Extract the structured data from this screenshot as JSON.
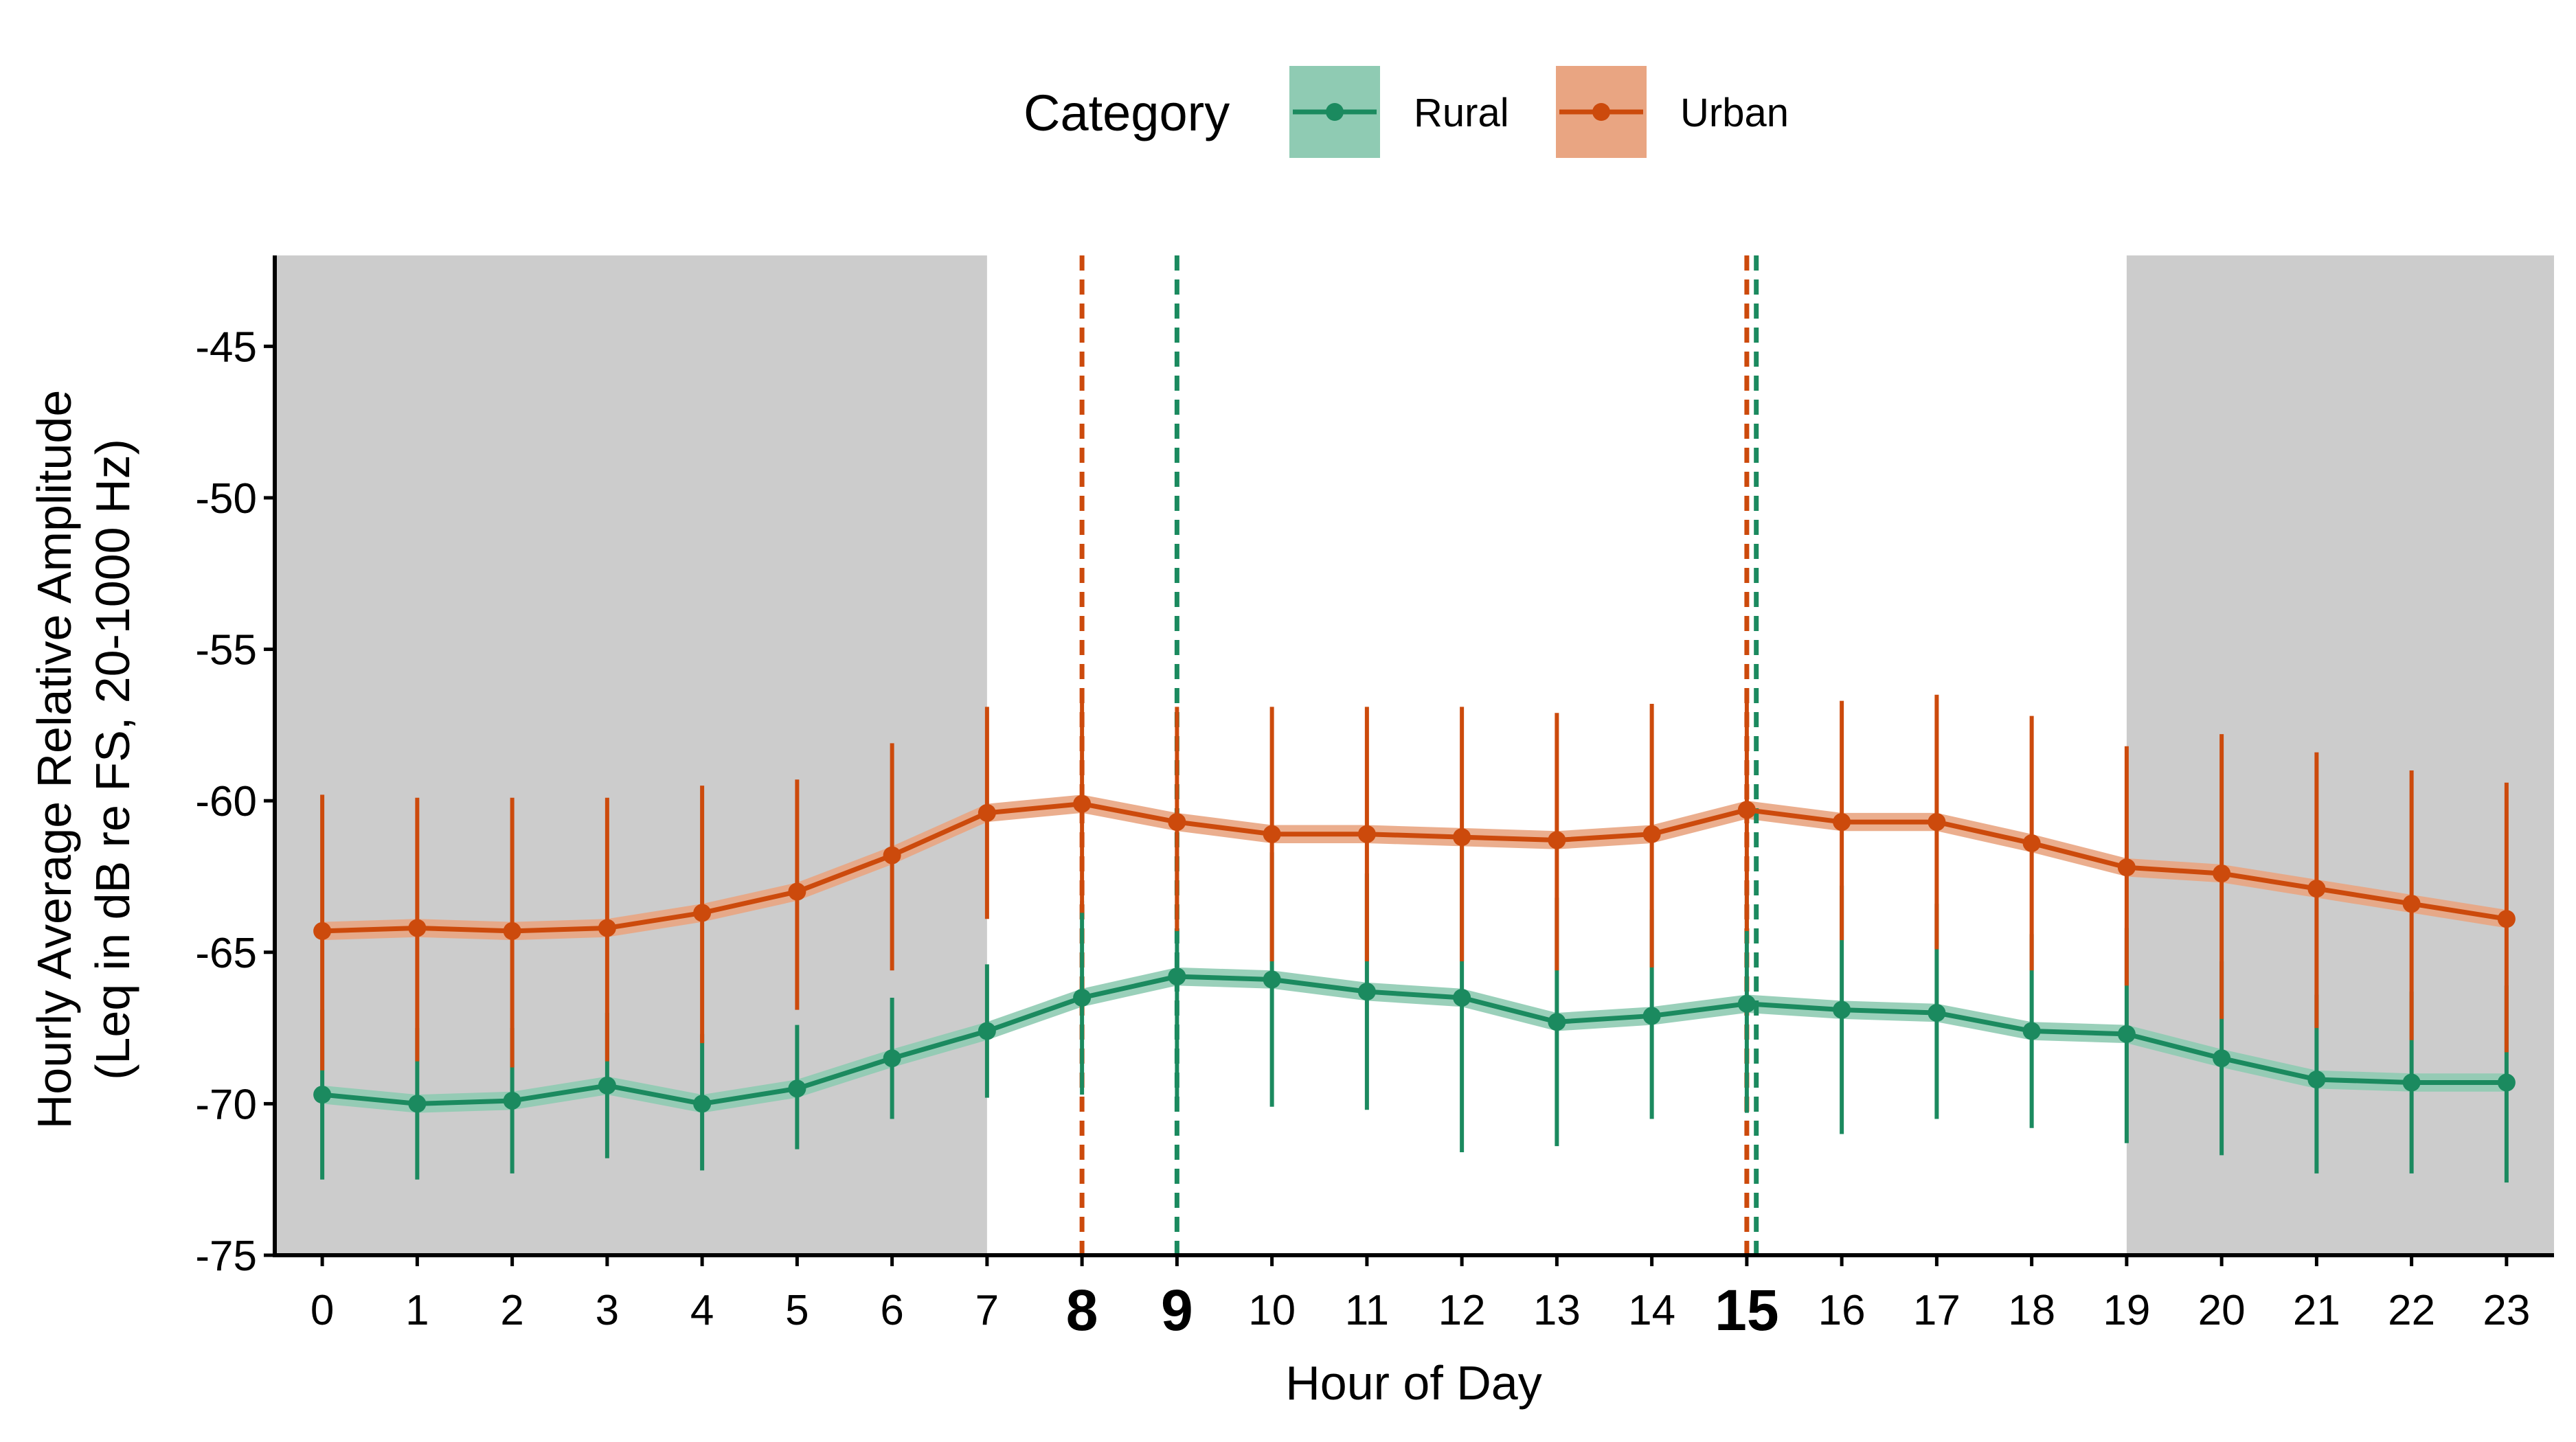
{
  "chart_data": {
    "type": "line",
    "title": "",
    "xlabel": "Hour of Day",
    "ylabel_lines": [
      "Hourly Average Relative Amplitude",
      "(Leq in dB re FS, 20-1000 Hz)"
    ],
    "xlim": [
      -0.5,
      23.5
    ],
    "ylim": [
      -75,
      -42
    ],
    "x": [
      0,
      1,
      2,
      3,
      4,
      5,
      6,
      7,
      8,
      9,
      10,
      11,
      12,
      13,
      14,
      15,
      16,
      17,
      18,
      19,
      20,
      21,
      22,
      23
    ],
    "x_tick_labels": [
      "0",
      "1",
      "2",
      "3",
      "4",
      "5",
      "6",
      "7",
      "8",
      "9",
      "10",
      "11",
      "12",
      "13",
      "14",
      "15",
      "16",
      "17",
      "18",
      "19",
      "20",
      "21",
      "22",
      "23"
    ],
    "bold_x_ticks": [
      8,
      9,
      15
    ],
    "y_ticks": [
      -45,
      -50,
      -55,
      -60,
      -65,
      -70,
      -75
    ],
    "y_tick_labels": [
      "-45",
      "-50",
      "-55",
      "-60",
      "-65",
      "-70",
      "-75"
    ],
    "legend": {
      "title": "Category",
      "position": "top"
    },
    "night_shading": [
      [
        -0.5,
        7
      ],
      [
        19,
        23.5
      ]
    ],
    "series": [
      {
        "name": "Rural",
        "color": "#1b8a5f",
        "ribbon_color": "#8fcbb3",
        "values": [
          -69.7,
          -70.0,
          -69.9,
          -69.4,
          -70.0,
          -69.5,
          -68.5,
          -67.6,
          -66.5,
          -65.8,
          -65.9,
          -66.3,
          -66.5,
          -67.3,
          -67.1,
          -66.7,
          -66.9,
          -67.0,
          -67.6,
          -67.7,
          -68.5,
          -69.2,
          -69.3,
          -69.3
        ],
        "lower": [
          -72.5,
          -72.5,
          -72.3,
          -71.8,
          -72.2,
          -71.5,
          -70.5,
          -69.8,
          -69.7,
          -70.2,
          -70.1,
          -70.2,
          -71.6,
          -71.4,
          -70.5,
          -70.3,
          -71.0,
          -70.5,
          -70.8,
          -71.3,
          -71.7,
          -72.3,
          -72.3,
          -72.6
        ],
        "upper": [
          -66.9,
          -67.5,
          -67.5,
          -67.0,
          -67.7,
          -67.4,
          -66.5,
          -65.4,
          -63.3,
          -61.4,
          -61.7,
          -62.4,
          -61.5,
          -63.2,
          -63.6,
          -62.9,
          -62.8,
          -63.4,
          -64.4,
          -64.2,
          -65.3,
          -66.4,
          -66.3,
          -66.1
        ],
        "peak_hours": [
          9,
          15.1
        ]
      },
      {
        "name": "Urban",
        "color": "#cc4a0c",
        "ribbon_color": "#e9a582",
        "values": [
          -64.3,
          -64.2,
          -64.3,
          -64.2,
          -63.7,
          -63.0,
          -61.8,
          -60.4,
          -60.1,
          -60.7,
          -61.1,
          -61.1,
          -61.2,
          -61.3,
          -61.1,
          -60.3,
          -60.7,
          -60.7,
          -61.4,
          -62.2,
          -62.4,
          -62.9,
          -63.4,
          -63.9
        ],
        "lower": [
          -68.9,
          -68.6,
          -68.8,
          -68.6,
          -68.0,
          -66.9,
          -65.6,
          -63.9,
          -63.7,
          -64.3,
          -65.3,
          -65.3,
          -65.3,
          -65.6,
          -65.5,
          -64.3,
          -64.6,
          -64.9,
          -65.6,
          -66.1,
          -67.2,
          -67.5,
          -67.9,
          -68.3
        ],
        "upper": [
          -59.8,
          -59.9,
          -59.9,
          -59.9,
          -59.5,
          -59.3,
          -58.1,
          -56.9,
          -56.5,
          -56.9,
          -56.9,
          -56.9,
          -56.9,
          -57.1,
          -56.8,
          -56.5,
          -56.7,
          -56.5,
          -57.2,
          -58.2,
          -57.8,
          -58.4,
          -59.0,
          -59.4
        ],
        "peak_hours": [
          8,
          15
        ]
      }
    ]
  }
}
